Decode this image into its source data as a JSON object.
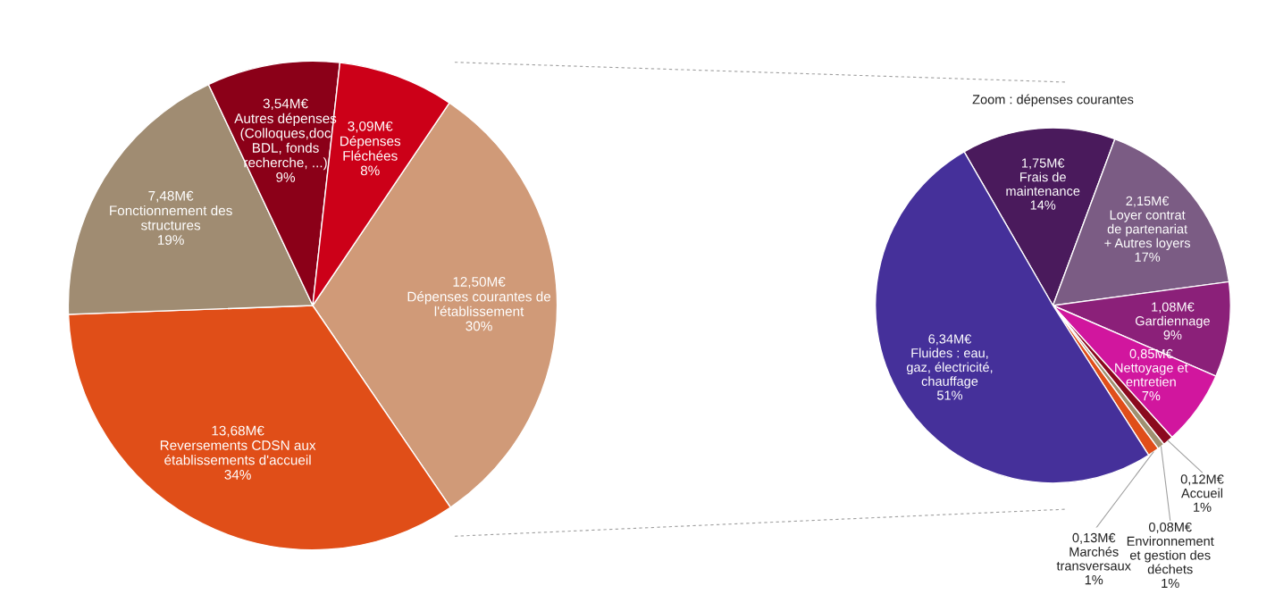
{
  "chart_data": [
    {
      "type": "pie",
      "categories": [
        "Dépenses courantes de\nl'établissement\n30%",
        "Reversements CDSN aux\nétablissements d'accueil\n34%",
        "Fonctionnement des\nstructures\n19%",
        "Autres dépenses\n(Colloques,doc\nBDL, fonds\nrecherche, ...)\n9%",
        "Dépenses\nFléchées\n8%"
      ],
      "values": [
        12.5,
        13.68,
        7.48,
        3.54,
        3.09
      ],
      "value_labels": [
        "12,50M€",
        "13,68M€",
        "7,48M€",
        "3,54M€",
        "3,09M€"
      ],
      "colors": [
        "#d09a78",
        "#e04e18",
        "#a08c72",
        "#8b0018",
        "#cc0018"
      ]
    },
    {
      "type": "pie",
      "title": "Zoom : dépenses courantes",
      "categories": [
        "Frais de\nmaintenance\n14%",
        "Loyer contrat\nde partenariat\n+ Autres loyers\n17%",
        "Gardiennage\n9%",
        "Nettoyage et\nentretien\n7%",
        "Accueil\n1%",
        "Environnement\net gestion des\ndéchets\n1%",
        "Marchés\ntransversaux\n1%",
        "Fluides : eau,\ngaz, électricité,\nchauffage\n51%"
      ],
      "values": [
        1.75,
        2.15,
        1.08,
        0.85,
        0.12,
        0.08,
        0.13,
        6.34
      ],
      "value_labels": [
        "1,75M€",
        "2,15M€",
        "1,08M€",
        "0,85M€",
        "0,12M€",
        "0,08M€",
        "0,13M€",
        "6,34M€"
      ],
      "colors": [
        "#4a1a5c",
        "#7b5c84",
        "#8b2079",
        "#d1169e",
        "#8b0a1e",
        "#a09070",
        "#e04e1a",
        "#45309a"
      ]
    }
  ]
}
